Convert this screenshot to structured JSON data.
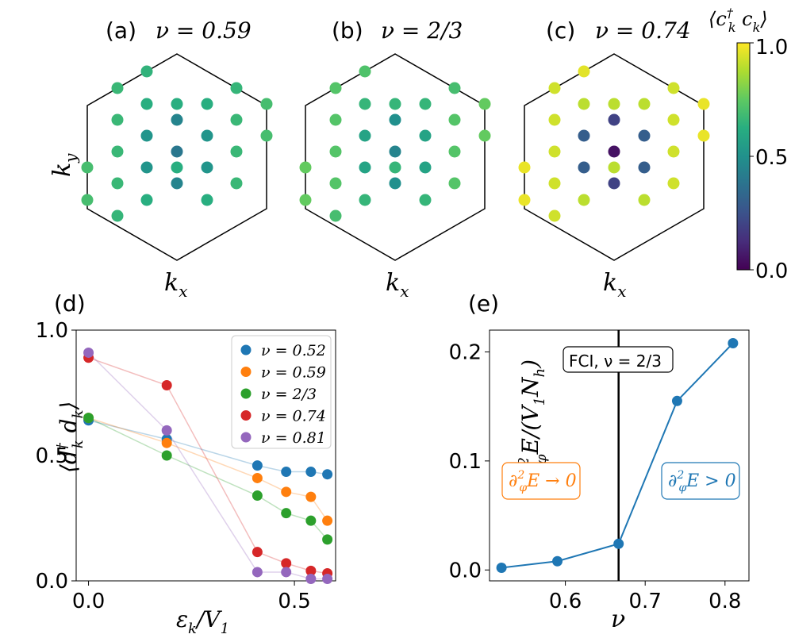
{
  "chart_data": [
    {
      "panel": "(a)",
      "type": "scatter",
      "title": "(a)  ν = 0.59",
      "xlabel": "kx",
      "ylabel": "ky",
      "colorbar": "viridis",
      "points": [
        {
          "kx": -1.3,
          "ky": 2.0,
          "value": 0.65
        },
        {
          "kx": -2.0,
          "ky": 1.5,
          "value": 0.67
        },
        {
          "kx": -1.0,
          "ky": 1.2,
          "value": 0.63
        },
        {
          "kx": 0.0,
          "ky": 1.2,
          "value": 0.63
        },
        {
          "kx": 1.0,
          "ky": 1.2,
          "value": 0.63
        },
        {
          "kx": 2.0,
          "ky": 1.5,
          "value": 0.66
        },
        {
          "kx": 3.0,
          "ky": 1.2,
          "value": 0.7
        },
        {
          "kx": -2.0,
          "ky": 0.7,
          "value": 0.67
        },
        {
          "kx": -1.0,
          "ky": 0.5,
          "value": 0.52
        },
        {
          "kx": 0.0,
          "ky": 0.7,
          "value": 0.45
        },
        {
          "kx": 1.0,
          "ky": 0.5,
          "value": 0.52
        },
        {
          "kx": 2.0,
          "ky": 0.7,
          "value": 0.67
        },
        {
          "kx": 3.0,
          "ky": 0.5,
          "value": 0.7
        },
        {
          "kx": -2.0,
          "ky": 0.0,
          "value": 0.67
        },
        {
          "kx": 0.0,
          "ky": 0.0,
          "value": 0.4
        },
        {
          "kx": 2.0,
          "ky": 0.0,
          "value": 0.67
        },
        {
          "kx": -3.0,
          "ky": -0.5,
          "value": 0.7
        },
        {
          "kx": -1.0,
          "ky": -0.5,
          "value": 0.52
        },
        {
          "kx": 1.0,
          "ky": -0.5,
          "value": 0.52
        },
        {
          "kx": -2.0,
          "ky": -0.7,
          "value": 0.67
        },
        {
          "kx": 0.0,
          "ky": -0.7,
          "value": 0.45
        },
        {
          "kx": 2.0,
          "ky": -0.7,
          "value": 0.67
        },
        {
          "kx": -3.0,
          "ky": -1.2,
          "value": 0.7
        },
        {
          "kx": -1.0,
          "ky": -1.2,
          "value": 0.63
        },
        {
          "kx": 1.0,
          "ky": -1.2,
          "value": 0.63
        },
        {
          "kx": -2.0,
          "ky": -1.5,
          "value": 0.66
        },
        {
          "kx": 0.0,
          "ky": -1.2,
          "value": 0.63
        }
      ]
    },
    {
      "panel": "(b)",
      "type": "scatter",
      "title": "(b)  ν = 2/3",
      "xlabel": "kx",
      "colorbar": "viridis",
      "points": [
        {
          "value": 0.72
        },
        {
          "value": 0.73
        },
        {
          "value": 0.66
        },
        {
          "value": 0.66
        },
        {
          "value": 0.66
        },
        {
          "value": 0.7
        },
        {
          "value": 0.76
        },
        {
          "value": 0.73
        },
        {
          "value": 0.58
        },
        {
          "value": 0.5
        },
        {
          "value": 0.58
        },
        {
          "value": 0.73
        },
        {
          "value": 0.76
        },
        {
          "value": 0.73
        },
        {
          "value": 0.45
        },
        {
          "value": 0.73
        },
        {
          "value": 0.76
        },
        {
          "value": 0.58
        },
        {
          "value": 0.58
        },
        {
          "value": 0.73
        },
        {
          "value": 0.5
        },
        {
          "value": 0.73
        },
        {
          "value": 0.76
        },
        {
          "value": 0.66
        },
        {
          "value": 0.66
        },
        {
          "value": 0.7
        },
        {
          "value": 0.66
        }
      ]
    },
    {
      "panel": "(c)",
      "type": "scatter",
      "title": "(c)  ν = 0.74",
      "xlabel": "kx",
      "colorbar": "viridis",
      "points": [
        {
          "value": 0.96
        },
        {
          "value": 0.93
        },
        {
          "value": 0.9
        },
        {
          "value": 0.9
        },
        {
          "value": 0.9
        },
        {
          "value": 0.93
        },
        {
          "value": 0.97
        },
        {
          "value": 0.93
        },
        {
          "value": 0.3
        },
        {
          "value": 0.2
        },
        {
          "value": 0.3
        },
        {
          "value": 0.93
        },
        {
          "value": 0.97
        },
        {
          "value": 0.93
        },
        {
          "value": 0.05
        },
        {
          "value": 0.93
        },
        {
          "value": 0.97
        },
        {
          "value": 0.3
        },
        {
          "value": 0.3
        },
        {
          "value": 0.93
        },
        {
          "value": 0.2
        },
        {
          "value": 0.93
        },
        {
          "value": 0.97
        },
        {
          "value": 0.9
        },
        {
          "value": 0.9
        },
        {
          "value": 0.93
        },
        {
          "value": 0.9
        }
      ],
      "colorbar_label": "⟨c†k ck⟩",
      "colorbar_ticks": [
        "0.0",
        "0.5",
        "1.0"
      ]
    },
    {
      "panel": "(d)",
      "type": "line",
      "xlabel": "εk/V1",
      "ylabel": "⟨d†k dk⟩",
      "xlim": [
        -0.03,
        0.6
      ],
      "ylim": [
        0.0,
        1.0
      ],
      "xticks": [
        "0.0",
        "0.5"
      ],
      "yticks": [
        "0.0",
        "0.5",
        "1.0"
      ],
      "legend_position": "top-right",
      "series": [
        {
          "name": "ν = 0.52",
          "color": "#1f77b4",
          "x": [
            0.0,
            0.19,
            0.41,
            0.48,
            0.54,
            0.58
          ],
          "y": [
            0.64,
            0.565,
            0.46,
            0.435,
            0.435,
            0.425
          ]
        },
        {
          "name": "ν = 0.59",
          "color": "#ff7f0e",
          "x": [
            0.0,
            0.19,
            0.41,
            0.48,
            0.54,
            0.58
          ],
          "y": [
            0.65,
            0.55,
            0.41,
            0.355,
            0.335,
            0.24
          ]
        },
        {
          "name": "ν = 2/3",
          "color": "#2ca02c",
          "x": [
            0.0,
            0.19,
            0.41,
            0.48,
            0.54,
            0.58
          ],
          "y": [
            0.65,
            0.5,
            0.34,
            0.27,
            0.24,
            0.165
          ]
        },
        {
          "name": "ν = 0.74",
          "color": "#d62728",
          "x": [
            0.0,
            0.19,
            0.41,
            0.48,
            0.54,
            0.58
          ],
          "y": [
            0.89,
            0.78,
            0.115,
            0.07,
            0.04,
            0.03
          ]
        },
        {
          "name": "ν = 0.81",
          "color": "#9467bd",
          "x": [
            0.0,
            0.19,
            0.41,
            0.48,
            0.54,
            0.58
          ],
          "y": [
            0.91,
            0.6,
            0.035,
            0.035,
            0.008,
            0.008
          ]
        }
      ]
    },
    {
      "panel": "(e)",
      "type": "line",
      "xlabel": "ν",
      "ylabel": "∂²φE/(V1Nh)",
      "xlim": [
        0.505,
        0.83
      ],
      "ylim": [
        -0.01,
        0.22
      ],
      "xticks": [
        "0.6",
        "0.7",
        "0.8"
      ],
      "yticks": [
        "0.0",
        "0.1",
        "0.2"
      ],
      "vline": {
        "x": 0.6667,
        "label": "FCI, ν = 2/3"
      },
      "color": "#1f77b4",
      "x": [
        0.52,
        0.59,
        0.6667,
        0.74,
        0.81
      ],
      "y": [
        0.002,
        0.008,
        0.024,
        0.155,
        0.208
      ],
      "annotations": [
        {
          "text": "∂²φE → 0",
          "color": "#ff7f0e"
        },
        {
          "text": "∂²φE > 0",
          "color": "#1f77b4"
        }
      ]
    }
  ],
  "labels": {
    "a_prefix": "(a)",
    "a_nu": "ν = 0.59",
    "b_prefix": "(b)",
    "b_nu": "ν = 2/3",
    "c_prefix": "(c)",
    "c_nu": "ν = 0.74",
    "d_label": "(d)",
    "e_label": "(e)",
    "fci_label": "FCI, ν = 2/3"
  }
}
